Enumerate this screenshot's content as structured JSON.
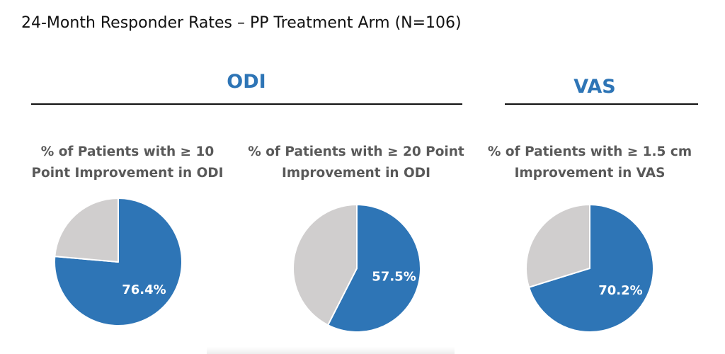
{
  "title": "24-Month Responder Rates – PP Treatment Arm (N=106)",
  "sections": [
    {
      "title": "ODI"
    },
    {
      "title": "VAS"
    }
  ],
  "colors": {
    "accent": "#2E75B6",
    "remainder": "#D0CECE",
    "heading": "#2E75B6",
    "subtitle": "#595959"
  },
  "chart_data": [
    {
      "type": "pie",
      "title_lines": [
        "% of Patients with ≥ 10",
        "Point Improvement in ODI"
      ],
      "slices": [
        {
          "value": 76.4,
          "label": "76.4%",
          "color": "#2E75B6"
        },
        {
          "value": 23.6,
          "label": "",
          "color": "#D0CECE"
        }
      ]
    },
    {
      "type": "pie",
      "title_lines": [
        "% of Patients with ≥ 20 Point",
        "Improvement in ODI"
      ],
      "slices": [
        {
          "value": 57.5,
          "label": "57.5%",
          "color": "#2E75B6"
        },
        {
          "value": 42.5,
          "label": "",
          "color": "#D0CECE"
        }
      ]
    },
    {
      "type": "pie",
      "title_lines": [
        "% of Patients with ≥ 1.5 cm",
        "Improvement in VAS"
      ],
      "slices": [
        {
          "value": 70.2,
          "label": "70.2%",
          "color": "#2E75B6"
        },
        {
          "value": 29.8,
          "label": "",
          "color": "#D0CECE"
        }
      ]
    }
  ]
}
